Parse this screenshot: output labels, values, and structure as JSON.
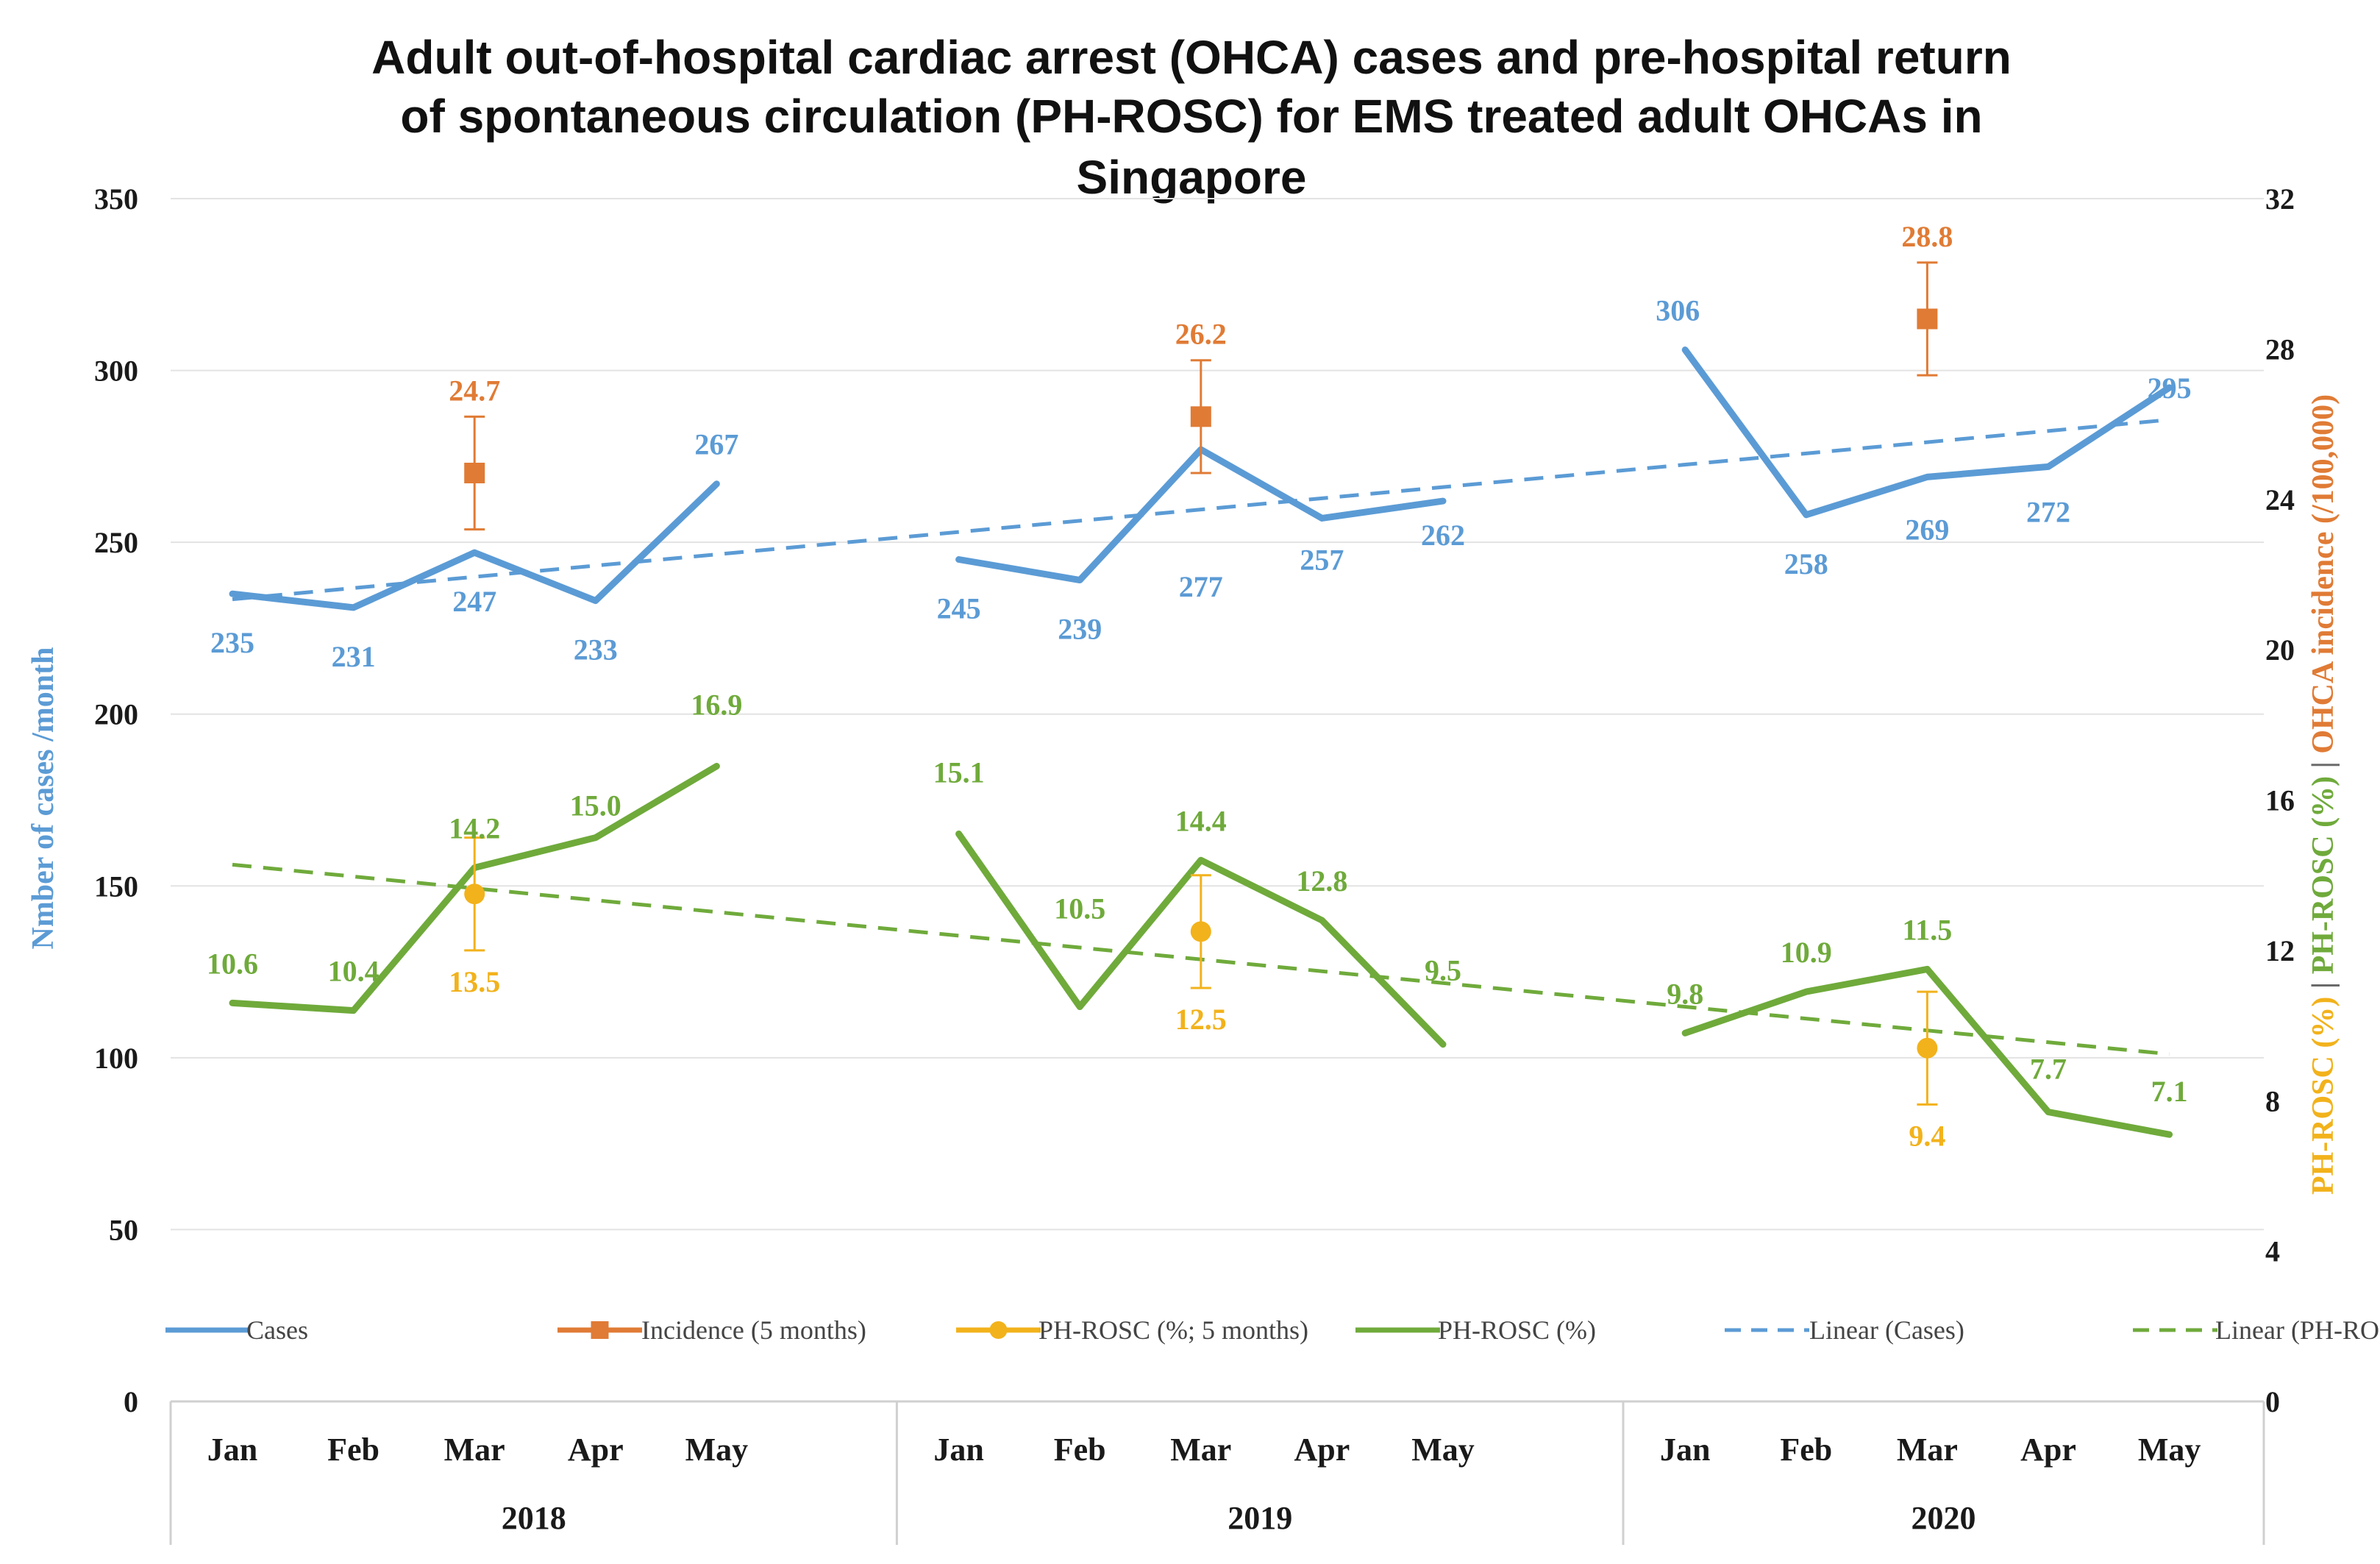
{
  "chart_data": {
    "type": "line",
    "title_lines": [
      "Adult out-of-hospital cardiac arrest (OHCA) cases and pre-hospital return",
      "of spontaneous circulation (PH-ROSC) for EMS treated adult OHCAs in",
      "Singapore"
    ],
    "ylabel_left": "Nmber of cases /month",
    "ylabel_right": [
      {
        "text": "PH-ROSC (%)",
        "color": "#F2B21B"
      },
      {
        "text": " | ",
        "color": "#6B6B6B"
      },
      {
        "text": "PH-ROSC (%)",
        "color": "#6FAA3B"
      },
      {
        "text": " | ",
        "color": "#6B6B6B"
      },
      {
        "text": "OHCA incidence (/100,000)",
        "color": "#E07B35"
      }
    ],
    "ylim_left": [
      0,
      350
    ],
    "yticks_left": [
      "0",
      "50",
      "100",
      "150",
      "200",
      "250",
      "300",
      "350"
    ],
    "ylim_right": [
      0,
      32
    ],
    "yticks_right": [
      "0",
      "4",
      "8",
      "12",
      "16",
      "20",
      "24",
      "28",
      "32"
    ],
    "years": [
      "2018",
      "2019",
      "2020"
    ],
    "months": [
      "Jan",
      "Feb",
      "Mar",
      "Apr",
      "May"
    ],
    "colors": {
      "cases": "#5B9BD5",
      "incidence": "#E07B35",
      "phrosc5": "#F2B21B",
      "phrosc": "#6FAA3B",
      "left_axis_title": "#5B9BD5"
    },
    "series": {
      "cases": {
        "name": "Cases",
        "values": [
          [
            235,
            231,
            247,
            233,
            267
          ],
          [
            245,
            239,
            277,
            257,
            262
          ],
          [
            306,
            258,
            269,
            272,
            295
          ]
        ]
      },
      "phrosc": {
        "name": "PH-ROSC (%)",
        "values": [
          [
            10.6,
            10.4,
            14.2,
            15.0,
            16.9
          ],
          [
            15.1,
            10.5,
            14.4,
            12.8,
            9.5
          ],
          [
            9.8,
            10.9,
            11.5,
            7.7,
            7.1
          ]
        ]
      },
      "incidence": {
        "name": "Incidence (5 months)",
        "month_index": 2,
        "values": [
          24.7,
          26.2,
          28.8
        ],
        "error": [
          1.5,
          1.5,
          1.5
        ]
      },
      "phrosc5": {
        "name": "PH-ROSC (%; 5 months)",
        "month_index": 2,
        "values": [
          13.5,
          12.5,
          9.4
        ],
        "error": [
          1.5,
          1.5,
          1.5
        ]
      },
      "linear_cases": {
        "name": "Linear (Cases)"
      },
      "linear_phrosc": {
        "name": "Linear (PH-ROSC (%))"
      }
    },
    "data_labels": {
      "cases": [
        [
          "235",
          "231",
          "247",
          "233",
          "267"
        ],
        [
          "245",
          "239",
          "277",
          "257",
          "262"
        ],
        [
          "306",
          "258",
          "269",
          "272",
          "295"
        ]
      ],
      "phrosc": [
        [
          "10.6",
          "10.4",
          "14.2",
          "15.0",
          "16.9"
        ],
        [
          "15.1",
          "10.5",
          "14.4",
          "12.8",
          "9.5"
        ],
        [
          "9.8",
          "10.9",
          "11.5",
          "7.7",
          "7.1"
        ]
      ],
      "incidence": [
        "24.7",
        "26.2",
        "28.8"
      ],
      "phrosc5": [
        "13.5",
        "12.5",
        "9.4"
      ]
    },
    "legend": [
      "Cases",
      "Incidence (5 months)",
      "PH-ROSC (%; 5 months)",
      "PH-ROSC (%)",
      "Linear (Cases)",
      "Linear (PH-ROSC (%))"
    ],
    "legend_position": "bottom-inside",
    "grid": true
  }
}
